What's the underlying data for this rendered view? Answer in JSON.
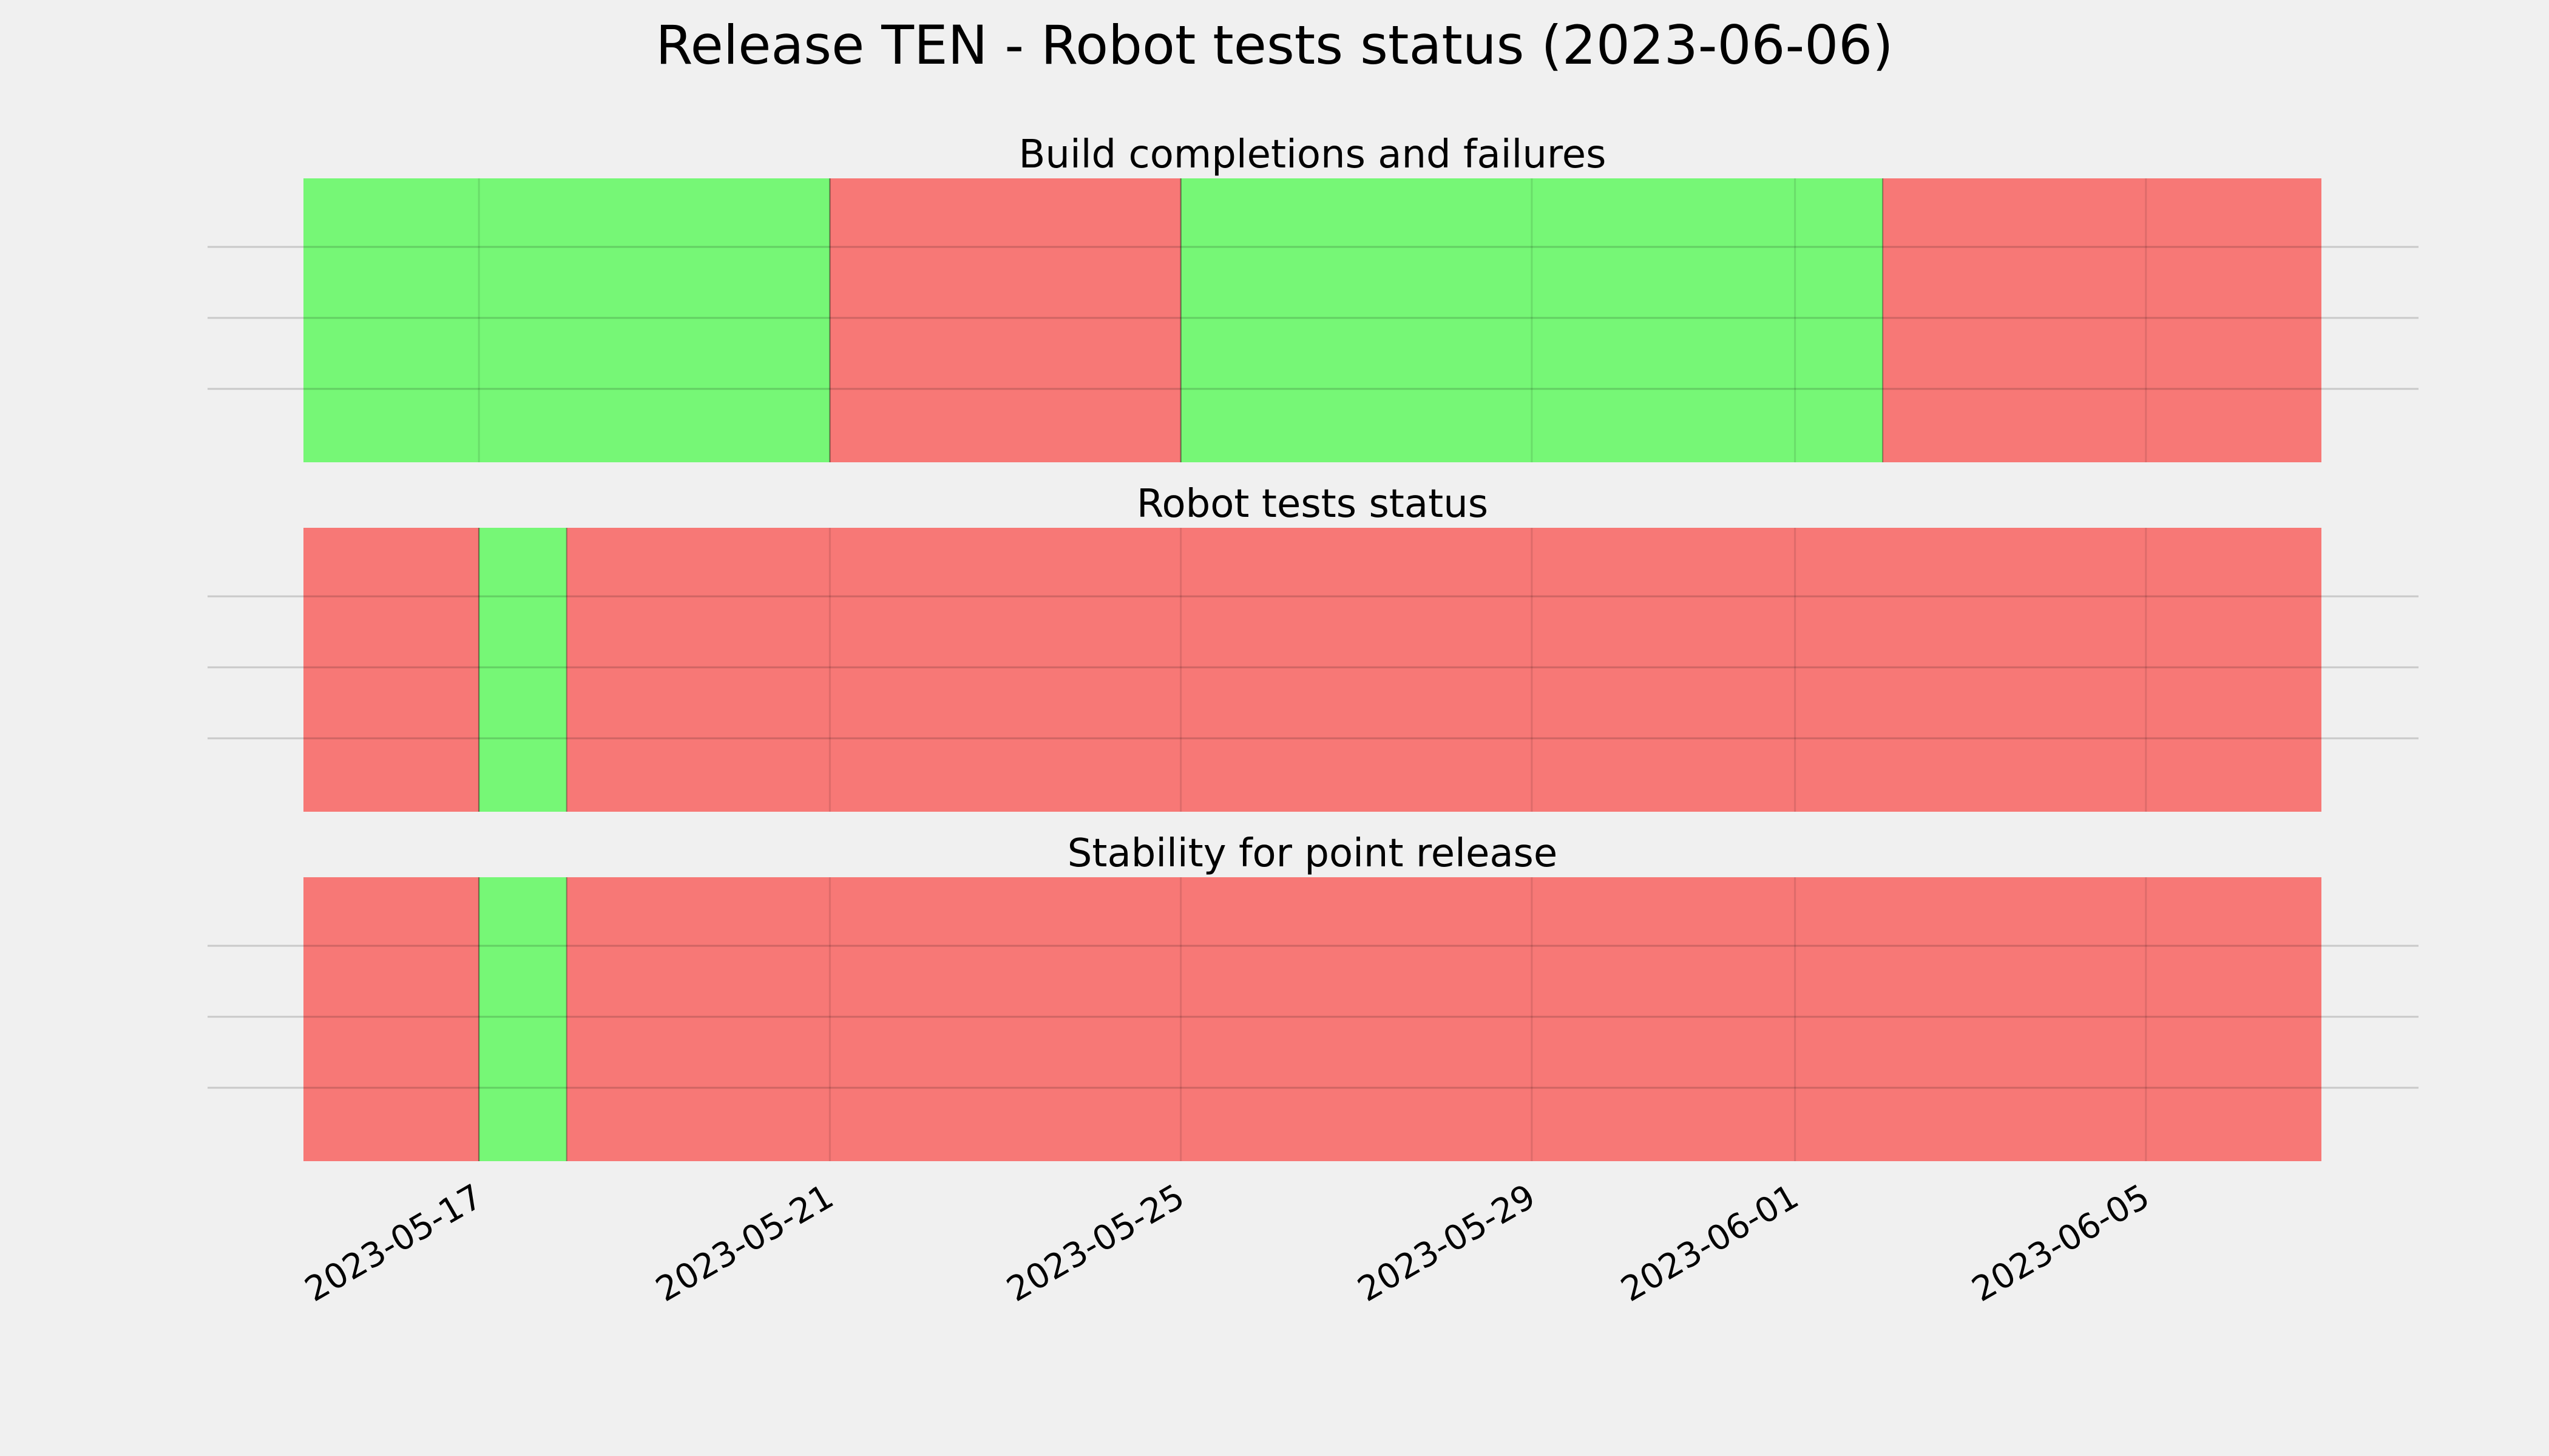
{
  "figure": {
    "title": "Release TEN - Robot tests status (2023-06-06)",
    "background": "#f0f0f0"
  },
  "chart_data": {
    "type": "timeline",
    "x_axis": {
      "type": "date",
      "range": [
        "2023-05-15",
        "2023-06-07"
      ],
      "ticks": [
        "2023-05-17",
        "2023-05-21",
        "2023-05-25",
        "2023-05-29",
        "2023-06-01",
        "2023-06-05"
      ],
      "tick_rotation": "30 degrees"
    },
    "status_colors": {
      "pass": "#76f776",
      "fail": "#f77876"
    },
    "grid": true,
    "panels": [
      {
        "title": "Build completions and failures",
        "segments": [
          {
            "start": "2023-05-15",
            "end": "2023-05-21",
            "status": "pass"
          },
          {
            "start": "2023-05-21",
            "end": "2023-05-25",
            "status": "fail"
          },
          {
            "start": "2023-05-25",
            "end": "2023-06-02",
            "status": "pass"
          },
          {
            "start": "2023-06-02",
            "end": "2023-06-07",
            "status": "fail"
          }
        ]
      },
      {
        "title": "Robot tests status",
        "segments": [
          {
            "start": "2023-05-15",
            "end": "2023-05-17",
            "status": "fail"
          },
          {
            "start": "2023-05-17",
            "end": "2023-05-18",
            "status": "pass"
          },
          {
            "start": "2023-05-18",
            "end": "2023-06-07",
            "status": "fail"
          }
        ]
      },
      {
        "title": "Stability for point release",
        "segments": [
          {
            "start": "2023-05-15",
            "end": "2023-05-17",
            "status": "fail"
          },
          {
            "start": "2023-05-17",
            "end": "2023-05-18",
            "status": "pass"
          },
          {
            "start": "2023-05-18",
            "end": "2023-06-07",
            "status": "fail"
          }
        ]
      }
    ]
  }
}
